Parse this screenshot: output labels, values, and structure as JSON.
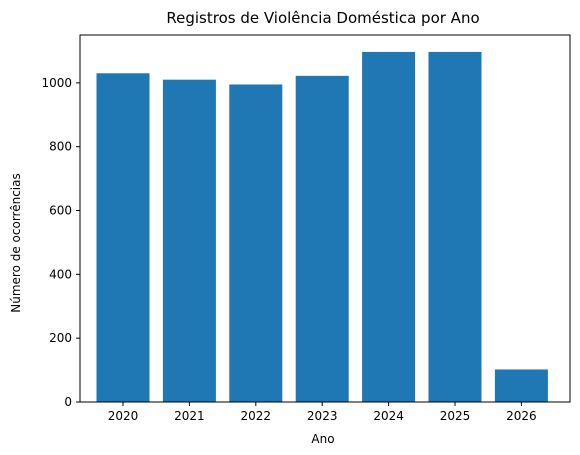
{
  "chart_data": {
    "type": "bar",
    "title": "Registros de Violência Doméstica por Ano",
    "xlabel": "Ano",
    "ylabel": "Número de ocorrências",
    "categories": [
      "2020",
      "2021",
      "2022",
      "2023",
      "2024",
      "2025",
      "2026"
    ],
    "values": [
      1030,
      1010,
      995,
      1022,
      1097,
      1097,
      102
    ],
    "ylim": [
      0,
      1150
    ],
    "yticks": [
      0,
      200,
      400,
      600,
      800,
      1000
    ],
    "grid": false,
    "bar_color": "#1f77b4"
  }
}
